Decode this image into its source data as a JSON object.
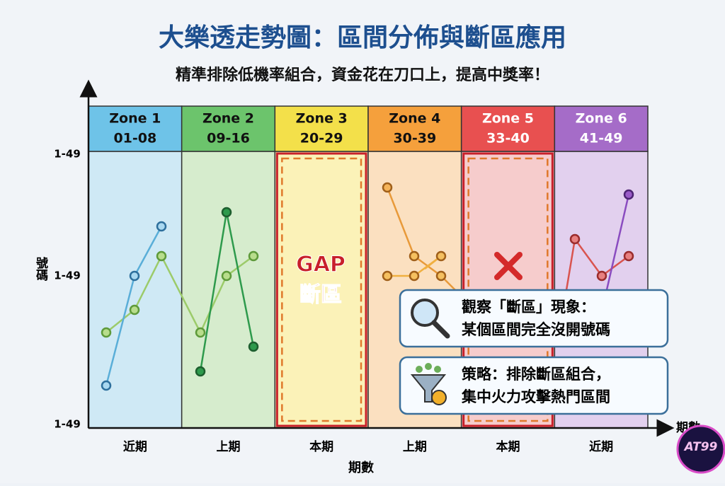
{
  "title": "大樂透走勢圖：區間分佈與斷區應用",
  "subtitle": "精準排除低機率組合，資金花在刀口上，提高中獎率！",
  "y_axis": {
    "label": "號碼",
    "ticks": [
      "1-49",
      "1-49",
      "1-49"
    ]
  },
  "x_axis": {
    "label": "期數",
    "end_label": "期數"
  },
  "zones": [
    {
      "name": "Zone 1",
      "range": "01-08",
      "period": "近期"
    },
    {
      "name": "Zone 2",
      "range": "09-16",
      "period": "上期"
    },
    {
      "name": "Zone 3",
      "range": "20-29",
      "period": "本期"
    },
    {
      "name": "Zone 4",
      "range": "30-39",
      "period": "上期"
    },
    {
      "name": "Zone 5",
      "range": "33-40",
      "period": "本期"
    },
    {
      "name": "Zone 6",
      "range": "41-49",
      "period": "近期"
    }
  ],
  "gap": {
    "label": "GAP",
    "sublabel": "斷區"
  },
  "callouts": [
    {
      "title": "觀察「斷區」現象：",
      "text": "某個區間完全沒開號碼"
    },
    {
      "title": "策略：排除斷區組合，",
      "text": "集中火力攻擊熱門區間"
    }
  ],
  "logo": "AT99"
}
